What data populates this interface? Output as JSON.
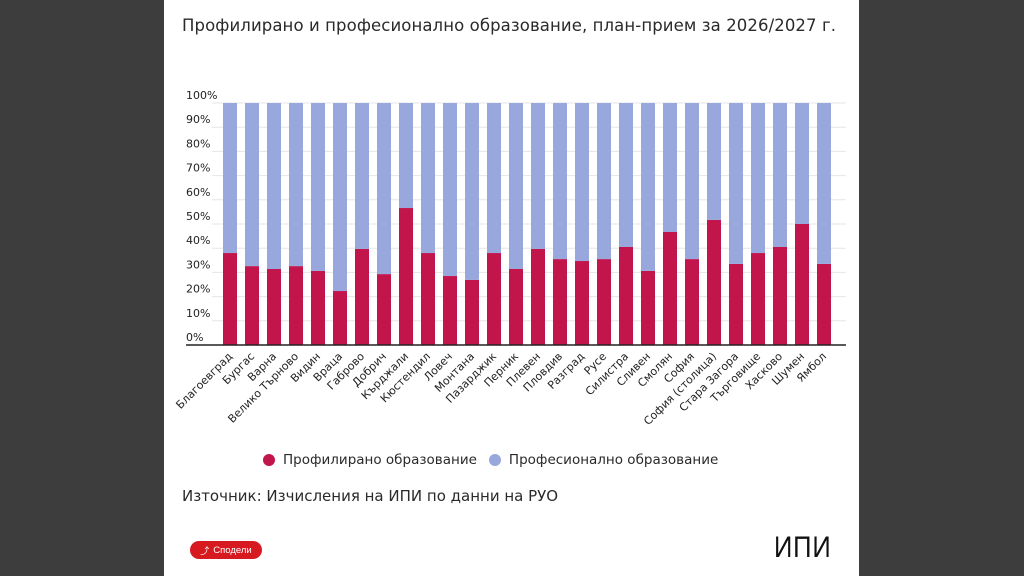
{
  "title": "Профилирано и професионално образование, план-прием за 2026/2027 г.",
  "source": "Източник: Изчисления на ИПИ по данни на РУО",
  "share_button": {
    "label": "Сподели",
    "icon": "share-icon"
  },
  "logo": "ИПИ",
  "colors": {
    "profiled": "#c2154c",
    "professional": "#98a7dc",
    "share": "#d71920"
  },
  "chart_data": {
    "type": "bar",
    "stacked": true,
    "percent": true,
    "title": "Профилирано и професионално образование, план-прием за 2026/2027 г.",
    "xlabel": "",
    "ylabel": "",
    "ylim": [
      0,
      100
    ],
    "yticks": [
      "0%",
      "10%",
      "20%",
      "30%",
      "40%",
      "50%",
      "60%",
      "70%",
      "80%",
      "90%",
      "100%"
    ],
    "grid": true,
    "legend_position": "bottom",
    "categories": [
      "Благоевград",
      "Бургас",
      "Варна",
      "Велико Търново",
      "Видин",
      "Враца",
      "Габрово",
      "Добрич",
      "Кърджали",
      "Кюстендил",
      "Ловеч",
      "Монтана",
      "Пазарджик",
      "Перник",
      "Плевен",
      "Пловдив",
      "Разград",
      "Русе",
      "Силистра",
      "Сливен",
      "Смолян",
      "София",
      "София (столица)",
      "Стара Загора",
      "Търговище",
      "Хасково",
      "Шумен",
      "Ямбол"
    ],
    "series": [
      {
        "name": "Профилирано образование",
        "color": "#c2154c",
        "values": [
          38.0,
          32.6,
          31.4,
          32.6,
          30.6,
          22.3,
          39.7,
          29.3,
          56.6,
          38.0,
          28.5,
          26.9,
          38.0,
          31.4,
          39.7,
          35.5,
          34.7,
          35.5,
          40.5,
          30.6,
          46.7,
          35.5,
          51.7,
          33.5,
          38.0,
          40.5,
          50.0,
          33.5
        ]
      },
      {
        "name": "Професионално образование",
        "color": "#98a7dc",
        "values": [
          62.0,
          67.4,
          68.6,
          67.4,
          69.4,
          77.7,
          60.3,
          70.7,
          43.4,
          62.0,
          71.5,
          73.1,
          62.0,
          68.6,
          60.3,
          64.5,
          65.3,
          64.5,
          59.5,
          69.4,
          53.3,
          64.5,
          48.3,
          66.5,
          62.0,
          59.5,
          50.0,
          66.5
        ]
      }
    ]
  }
}
